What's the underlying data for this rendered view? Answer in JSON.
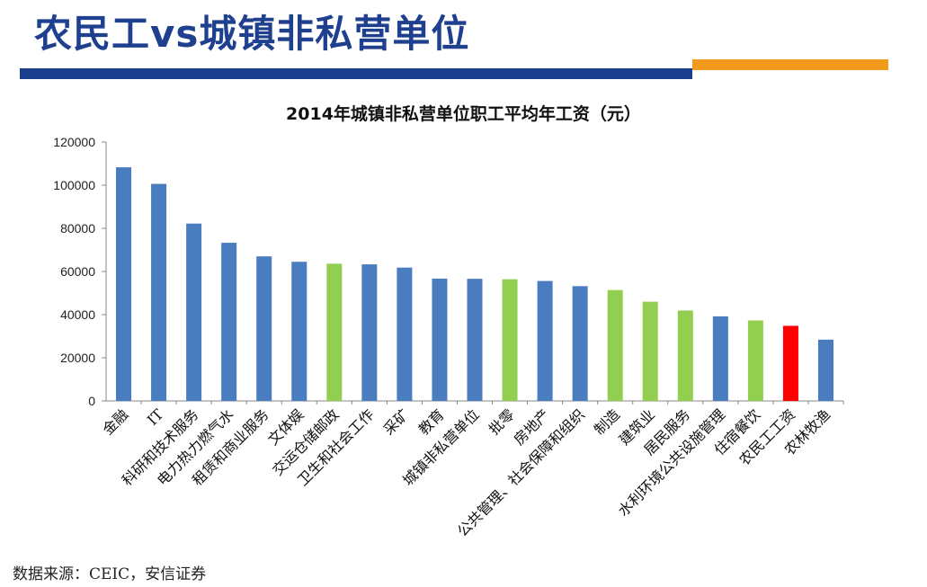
{
  "slide": {
    "title": "农民工vs城镇非私营单位",
    "source": "数据来源：CEIC，安信证券"
  },
  "colors": {
    "header_blue": "#1a3d8c",
    "header_orange": "#f39a1e",
    "blue": "#4a7cc0",
    "green": "#92cf50",
    "red": "#ff0000"
  },
  "chart_data": {
    "type": "bar",
    "title": "2014年城镇非私营单位职工平均年工资（元）",
    "xlabel": "",
    "ylabel": "",
    "ylim": [
      0,
      120000
    ],
    "yticks": [
      0,
      20000,
      40000,
      60000,
      80000,
      100000,
      120000
    ],
    "grid": false,
    "legend": "none",
    "categories": [
      "金融",
      "IT",
      "科研和技术服务",
      "电力热力燃气水",
      "租赁和商业服务",
      "文体娱",
      "交运仓储邮政",
      "卫生和社会工作",
      "采矿",
      "教育",
      "城镇非私营单位",
      "批零",
      "房地产",
      "公共管理、社会保障和组织",
      "制造",
      "建筑业",
      "居民服务",
      "水利环境公共设施管理",
      "住宿餐饮",
      "农民工工资",
      "农林牧渔"
    ],
    "values": [
      108300,
      100600,
      82200,
      73300,
      67000,
      64500,
      63600,
      63300,
      61800,
      56700,
      56600,
      56400,
      55600,
      53200,
      51400,
      46000,
      41900,
      39200,
      37300,
      34800,
      28400
    ],
    "bar_colors": [
      "blue",
      "blue",
      "blue",
      "blue",
      "blue",
      "blue",
      "green",
      "blue",
      "blue",
      "blue",
      "blue",
      "green",
      "blue",
      "blue",
      "green",
      "green",
      "green",
      "blue",
      "green",
      "red",
      "blue"
    ]
  }
}
